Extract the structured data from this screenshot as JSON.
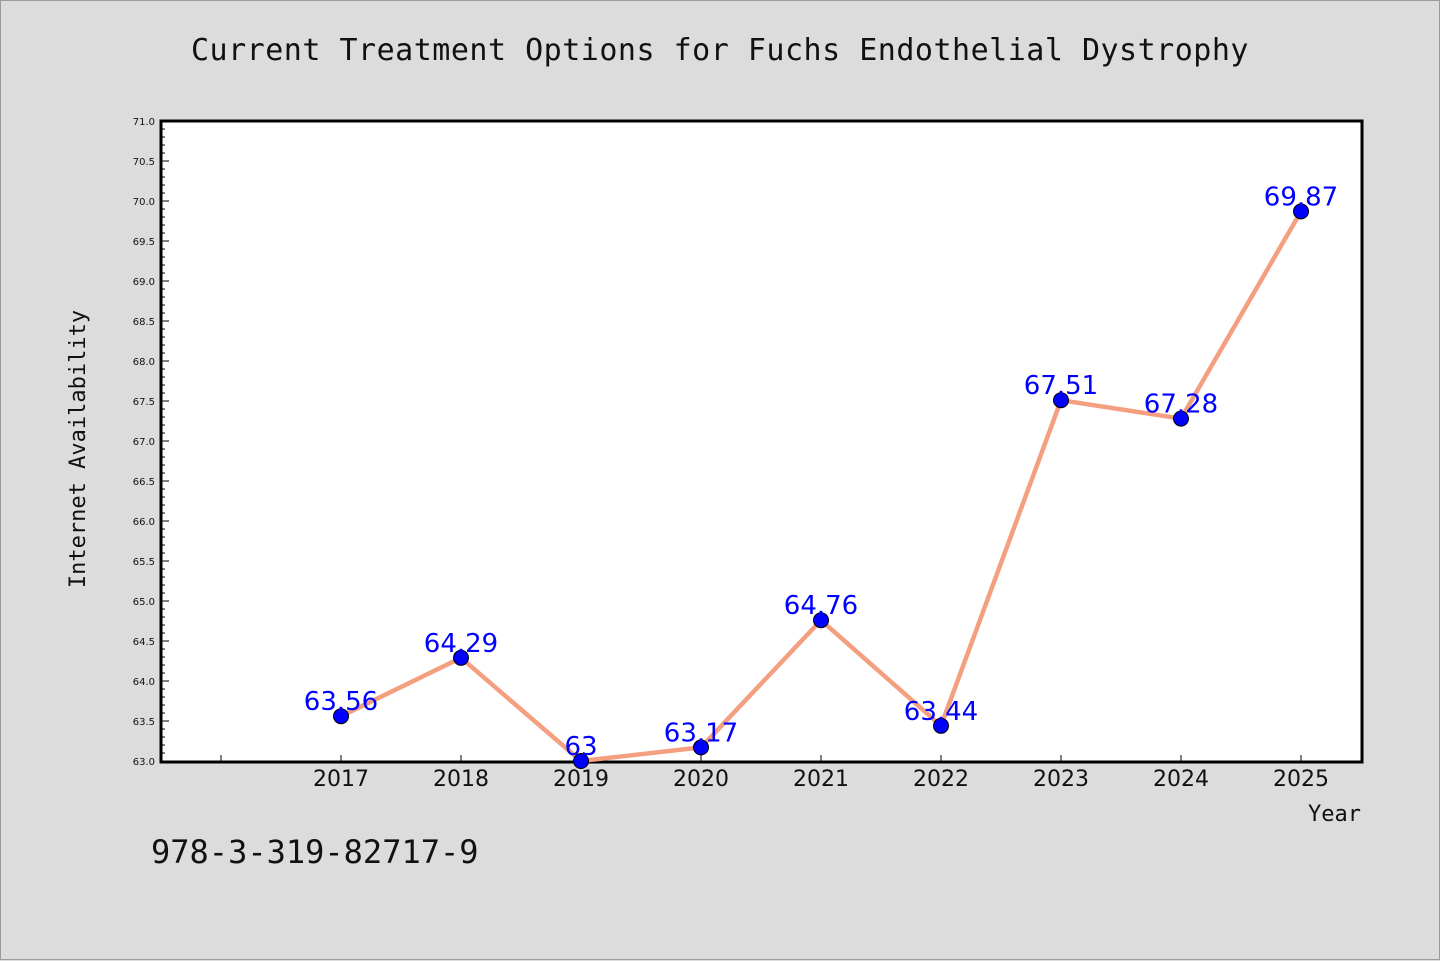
{
  "title": "Current Treatment Options for Fuchs Endothelial Dystrophy",
  "footer_text": "978-3-319-82717-9",
  "chart_data": {
    "type": "line",
    "title": "Current Treatment Options for Fuchs Endothelial Dystrophy",
    "xlabel": "Year",
    "ylabel": "Internet Availability",
    "x": [
      "2017",
      "2018",
      "2019",
      "2020",
      "2021",
      "2022",
      "2023",
      "2024",
      "2025"
    ],
    "values": [
      63.56,
      64.29,
      63.0,
      63.17,
      64.76,
      63.44,
      67.51,
      67.28,
      69.87
    ],
    "data_labels": [
      "63.56",
      "64.29",
      "63",
      "63.17",
      "64.76",
      "63.44",
      "67.51",
      "67.28",
      "69.87"
    ],
    "ylim": [
      63.0,
      71.0
    ],
    "yticks": [
      "63.0",
      "63.5",
      "64.0",
      "64.5",
      "65.0",
      "65.5",
      "66.0",
      "66.5",
      "67.0",
      "67.5",
      "68.0",
      "68.5",
      "69.0",
      "69.5",
      "70.0",
      "70.5",
      "71.0"
    ],
    "grid": false,
    "colors": {
      "line": "#f4a080",
      "marker": "#0000ff",
      "label": "#0000ff",
      "background": "#dcdcdc",
      "plot_bg": "#ffffff"
    }
  }
}
